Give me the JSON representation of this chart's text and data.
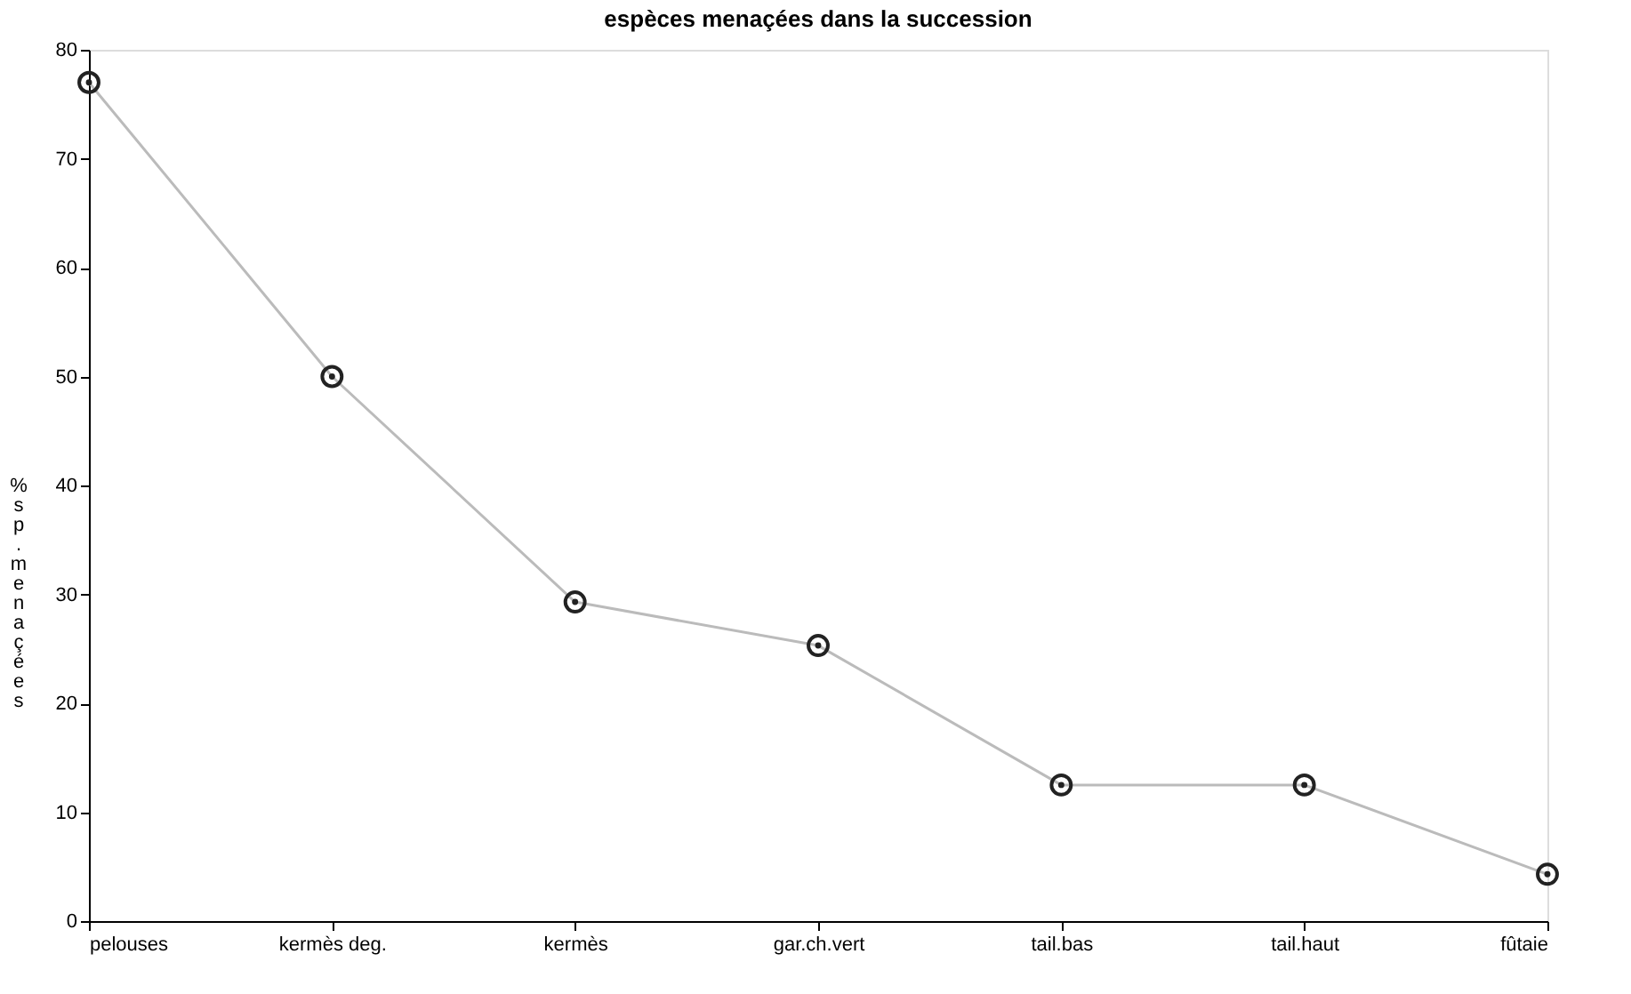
{
  "chart_data": {
    "type": "line",
    "title": "espèces menaçées dans la succession",
    "ylabel": "%sp.menaçées",
    "categories": [
      "pelouses",
      "kermès deg.",
      "kermès",
      "gar.ch.vert",
      "tail.bas",
      "tail.haut",
      "fûtaie"
    ],
    "series": [
      {
        "color": "#bbbbbb",
        "values": [
          77,
          50,
          29.3,
          25.3,
          12.5,
          12.5,
          4.3
        ]
      }
    ],
    "ylim": [
      0,
      80
    ],
    "yticks": [
      0,
      10,
      20,
      30,
      40,
      50,
      60,
      70,
      80
    ],
    "grid": false,
    "marker": "circle",
    "line_style": "solid"
  }
}
